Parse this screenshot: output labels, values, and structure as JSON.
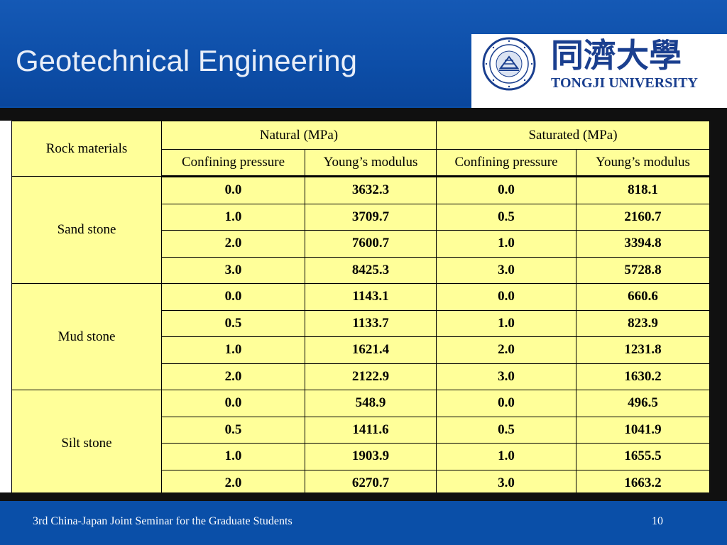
{
  "slide": {
    "title": "Geotechnical Engineering",
    "logo": {
      "cn_name": "同濟大學",
      "en_name": "TONGJI UNIVERSITY",
      "seal_text": "TONGJI UNIVERSITY"
    },
    "footer": "3rd China-Japan Joint Seminar for the Graduate Students",
    "page_number": "10"
  },
  "table": {
    "header": {
      "rock_materials": "Rock materials",
      "natural": "Natural (MPa)",
      "saturated": "Saturated (MPa)",
      "confining_pressure": "Confining pressure",
      "youngs_modulus": "Young’s modulus"
    },
    "groups": [
      {
        "name": "Sand stone",
        "rows": [
          [
            "0.0",
            "3632.3",
            "0.0",
            "818.1"
          ],
          [
            "1.0",
            "3709.7",
            "0.5",
            "2160.7"
          ],
          [
            "2.0",
            "7600.7",
            "1.0",
            "3394.8"
          ],
          [
            "3.0",
            "8425.3",
            "3.0",
            "5728.8"
          ]
        ]
      },
      {
        "name": "Mud stone",
        "rows": [
          [
            "0.0",
            "1143.1",
            "0.0",
            "660.6"
          ],
          [
            "0.5",
            "1133.7",
            "1.0",
            "823.9"
          ],
          [
            "1.0",
            "1621.4",
            "2.0",
            "1231.8"
          ],
          [
            "2.0",
            "2122.9",
            "3.0",
            "1630.2"
          ]
        ]
      },
      {
        "name": "Silt stone",
        "rows": [
          [
            "0.0",
            "548.9",
            "0.0",
            "496.5"
          ],
          [
            "0.5",
            "1411.6",
            "0.5",
            "1041.9"
          ],
          [
            "1.0",
            "1903.9",
            "1.0",
            "1655.5"
          ],
          [
            "2.0",
            "6270.7",
            "3.0",
            "1663.2"
          ]
        ]
      }
    ]
  },
  "colors": {
    "slide_blue": "#0a4fa8",
    "table_fill": "#ffff99",
    "logo_blue": "#1a3f8f"
  }
}
